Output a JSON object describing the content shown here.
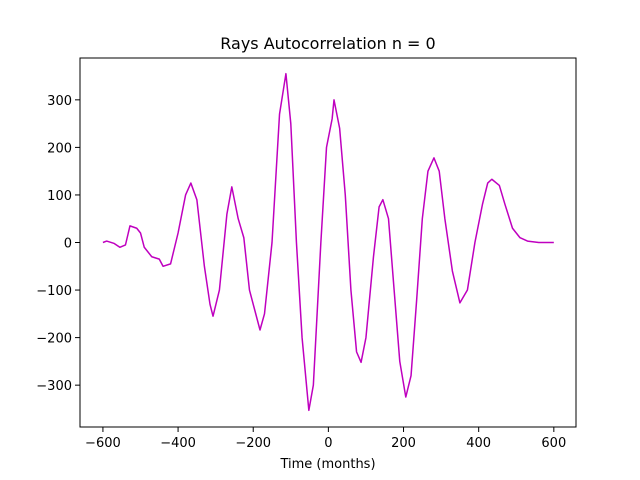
{
  "chart_data": {
    "type": "line",
    "title": "Rays Autocorrelation n = 0",
    "x_label": "Time (months)",
    "x": [
      -600,
      -590,
      -570,
      -555,
      -540,
      -528,
      -510,
      -500,
      -490,
      -470,
      -450,
      -440,
      -420,
      -400,
      -380,
      -366,
      -350,
      -330,
      -315,
      -307,
      -290,
      -270,
      -257,
      -240,
      -225,
      -210,
      -182,
      -170,
      -150,
      -130,
      -113,
      -100,
      -85,
      -70,
      -52,
      -40,
      -20,
      -5,
      10,
      15,
      30,
      45,
      60,
      75,
      87,
      100,
      120,
      135,
      145,
      160,
      175,
      190,
      206,
      220,
      235,
      250,
      265,
      281,
      295,
      310,
      330,
      345,
      350,
      370,
      390,
      410,
      424,
      435,
      455,
      470,
      490,
      510,
      530,
      560,
      600
    ],
    "values": [
      0,
      3,
      -2,
      -10,
      -5,
      35,
      30,
      20,
      -10,
      -30,
      -35,
      -50,
      -45,
      20,
      100,
      125,
      90,
      -50,
      -130,
      -155,
      -100,
      60,
      117,
      50,
      10,
      -100,
      -184,
      -150,
      0,
      270,
      355,
      250,
      0,
      -200,
      -353,
      -300,
      0,
      200,
      260,
      300,
      240,
      100,
      -100,
      -230,
      -252,
      -200,
      -30,
      75,
      90,
      50,
      -100,
      -250,
      -325,
      -280,
      -120,
      50,
      150,
      178,
      150,
      50,
      -60,
      -110,
      -127,
      -100,
      0,
      80,
      125,
      133,
      120,
      80,
      30,
      10,
      3,
      0,
      0
    ],
    "color": "#bf00bf",
    "xlim": [
      -661,
      659
    ],
    "ylim": [
      -388,
      388
    ],
    "xticks": [
      {
        "value": -600,
        "label": "−600"
      },
      {
        "value": -400,
        "label": "−400"
      },
      {
        "value": -200,
        "label": "−200"
      },
      0,
      200,
      400,
      600
    ],
    "yticks": [
      {
        "value": -300,
        "label": "−300"
      },
      {
        "value": -200,
        "label": "−200"
      },
      {
        "value": -100,
        "label": "−100"
      },
      0,
      100,
      200,
      300
    ]
  }
}
